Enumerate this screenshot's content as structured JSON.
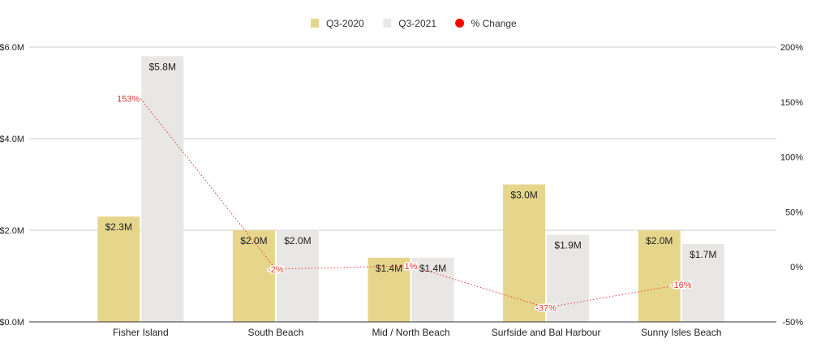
{
  "chart_data": {
    "type": "bar",
    "categories": [
      "Fisher Island",
      "South Beach",
      "Mid / North Beach",
      "Surfside and Bal Harbour",
      "Sunny Isles Beach"
    ],
    "series": [
      {
        "name": "Q3-2020",
        "type": "bar",
        "axis": "left",
        "color": "#e6d68c",
        "values": [
          2.3,
          2.0,
          1.4,
          3.0,
          2.0
        ],
        "labels": [
          "$2.3M",
          "$2.0M",
          "$1.4M",
          "$3.0M",
          "$2.0M"
        ]
      },
      {
        "name": "Q3-2021",
        "type": "bar",
        "axis": "left",
        "color": "#e8e7e5",
        "values": [
          5.8,
          2.0,
          1.4,
          1.9,
          1.7
        ],
        "labels": [
          "$5.8M",
          "$2.0M",
          "$1.4M",
          "$1.9M",
          "$1.7M"
        ]
      },
      {
        "name": "% Change",
        "type": "line",
        "axis": "right",
        "color": "#e53935",
        "style": "dotted",
        "values": [
          153,
          -2,
          1,
          -37,
          -16
        ],
        "labels": [
          "153%",
          "-2%",
          "1%",
          "-37%",
          "-16%"
        ]
      }
    ],
    "left_axis": {
      "range": [
        0,
        6
      ],
      "ticks": [
        "$0.0M",
        "$2.0M",
        "$4.0M",
        "$6.0M"
      ],
      "tick_values": [
        0,
        2,
        4,
        6
      ]
    },
    "right_axis": {
      "range": [
        -50,
        200
      ],
      "ticks": [
        "-50%",
        "0%",
        "50%",
        "100%",
        "150%",
        "200%"
      ],
      "tick_values": [
        -50,
        0,
        50,
        100,
        150,
        200
      ]
    },
    "grid": true,
    "legend": "top"
  }
}
